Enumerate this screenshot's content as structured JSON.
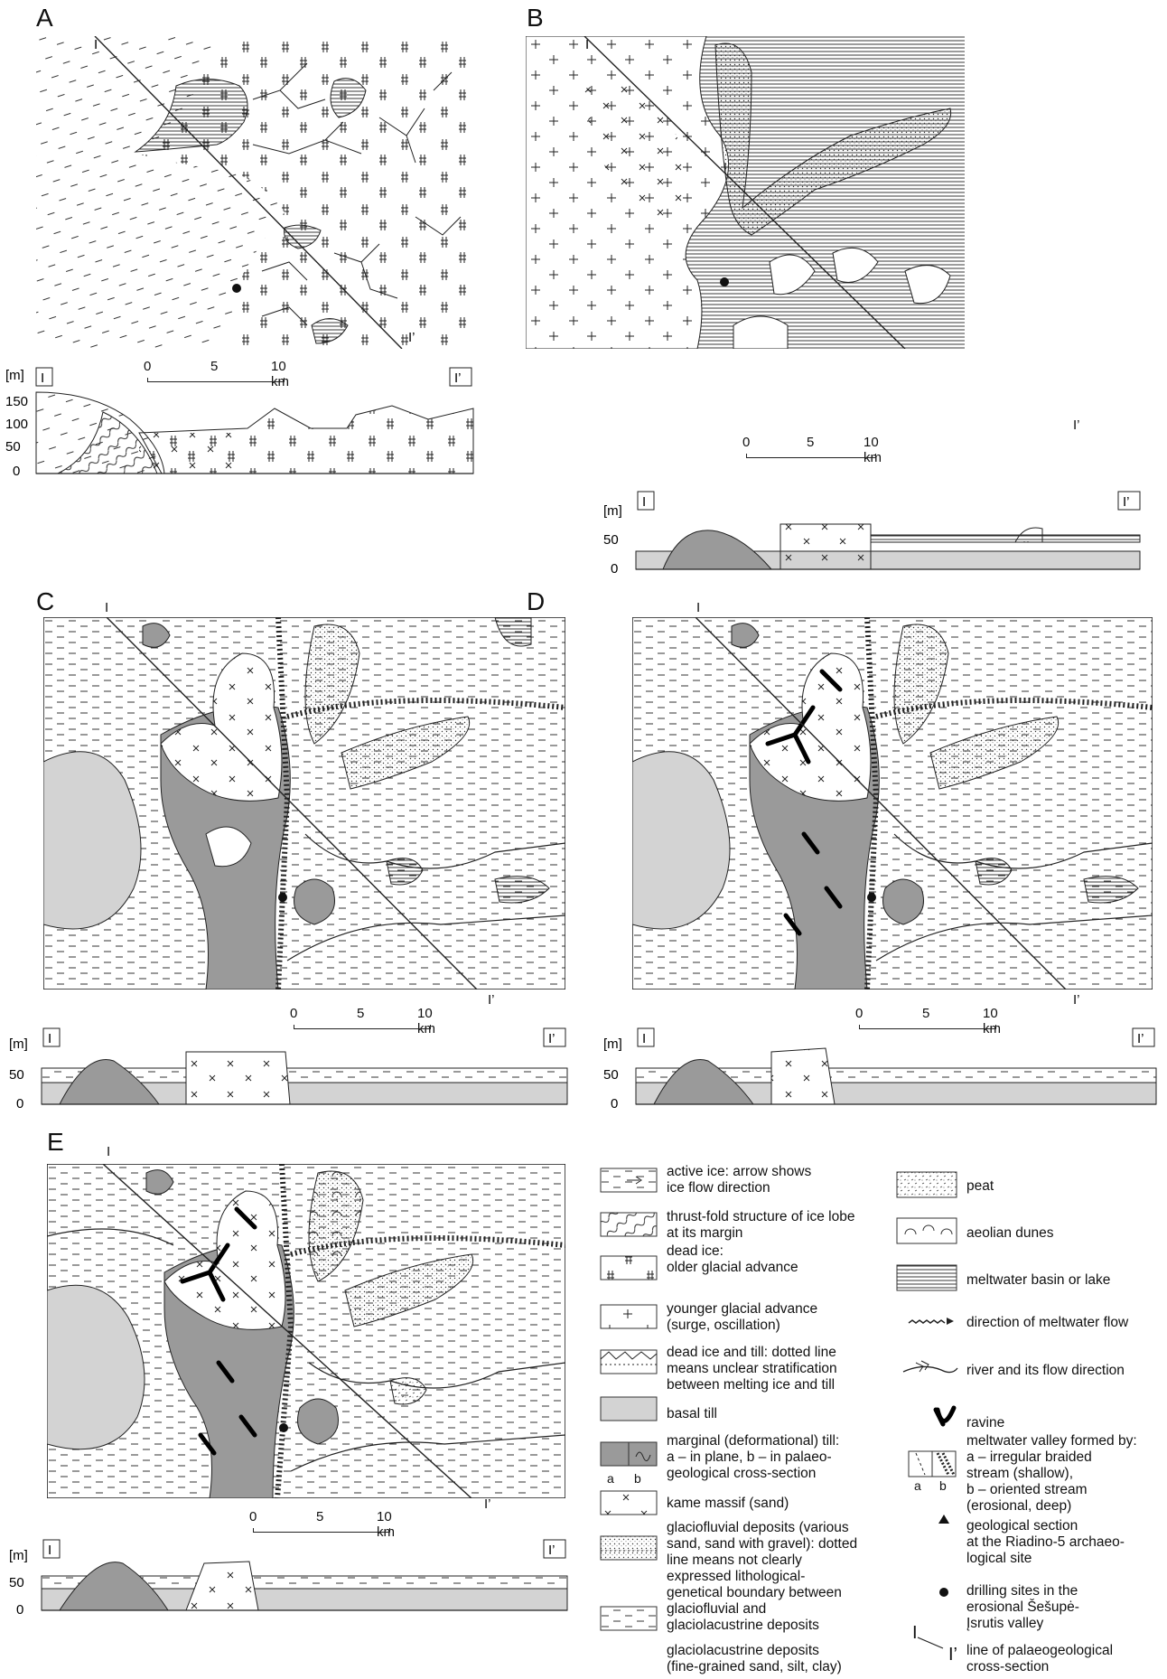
{
  "panels": [
    {
      "letter": "A"
    },
    {
      "letter": "B"
    },
    {
      "letter": "C"
    },
    {
      "letter": "D"
    },
    {
      "letter": "E"
    }
  ],
  "scale": {
    "ticks": [
      "0",
      "5",
      "10 km"
    ]
  },
  "section": {
    "unit": "[m]",
    "start_label": "I",
    "end_label": "I’",
    "ticks_A": [
      "150",
      "100",
      "50",
      "0"
    ],
    "ticks_other": [
      "50",
      "0"
    ]
  },
  "map_labels": {
    "start": "I",
    "end": "I’"
  },
  "legend_left": [
    {
      "key": "active_ice",
      "text": [
        "active ice: arrow shows",
        "ice flow direction"
      ]
    },
    {
      "key": "thrust_fold",
      "text": [
        "thrust-fold structure of ice lobe",
        "at its margin"
      ]
    },
    {
      "key": "dead_ice_older",
      "text": [
        "dead ice:",
        "older glacial advance"
      ]
    },
    {
      "key": "younger_advance",
      "text": [
        "younger glacial advance",
        "(surge, oscillation)"
      ]
    },
    {
      "key": "dead_ice_till",
      "text": [
        "dead ice and till: dotted line",
        "means unclear stratification",
        "between melting ice and till"
      ]
    },
    {
      "key": "basal_till",
      "text": [
        "basal till"
      ]
    },
    {
      "key": "marginal_till",
      "text": [
        "marginal (deformational) till:",
        "a – in plane, b – in palaeo-",
        "geological cross-section"
      ],
      "sub": [
        "a",
        "b"
      ]
    },
    {
      "key": "kame",
      "text": [
        "kame massif (sand)"
      ]
    },
    {
      "key": "glaciofluvial",
      "text": [
        "glaciofluvial deposits (various",
        "sand, sand with gravel): dotted",
        "line means not clearly",
        "expressed lithological-",
        "genetical boundary between",
        "glaciofluvial and",
        "glaciolacustrine deposits"
      ]
    },
    {
      "key": "glaciolacustrine",
      "text": [
        "glaciolacustrine deposits",
        "(fine-grained sand, silt, clay)"
      ]
    }
  ],
  "legend_right": [
    {
      "key": "peat",
      "text": [
        "peat"
      ]
    },
    {
      "key": "dunes",
      "text": [
        "aeolian dunes"
      ]
    },
    {
      "key": "basin",
      "text": [
        "meltwater basin or lake"
      ]
    },
    {
      "key": "meltwater_flow",
      "text": [
        "direction of meltwater flow"
      ]
    },
    {
      "key": "river",
      "text": [
        "river and its flow direction"
      ]
    },
    {
      "key": "ravine",
      "text": [
        "ravine"
      ]
    },
    {
      "key": "meltwater_valley",
      "text": [
        "meltwater valley formed by:",
        "a – irregular braided",
        "stream (shallow),",
        "b – oriented stream",
        "(erosional, deep)"
      ],
      "sub": [
        "a",
        "b"
      ]
    },
    {
      "key": "geo_section",
      "text": [
        "geological section",
        "at the Riadino-5 archaeo-",
        "logical site"
      ]
    },
    {
      "key": "drilling",
      "text": [
        "drilling sites in the",
        "erosional Šešupė-",
        "Įsrutis valley"
      ]
    },
    {
      "key": "cross_section_line",
      "text": [
        "line of palaeogeological",
        "cross-section"
      ],
      "marks": [
        "I",
        "I’"
      ]
    }
  ],
  "colors": {
    "basal_till": "#d3d3d3",
    "marginal_till": "#9a9a9a",
    "line": "#222222"
  }
}
